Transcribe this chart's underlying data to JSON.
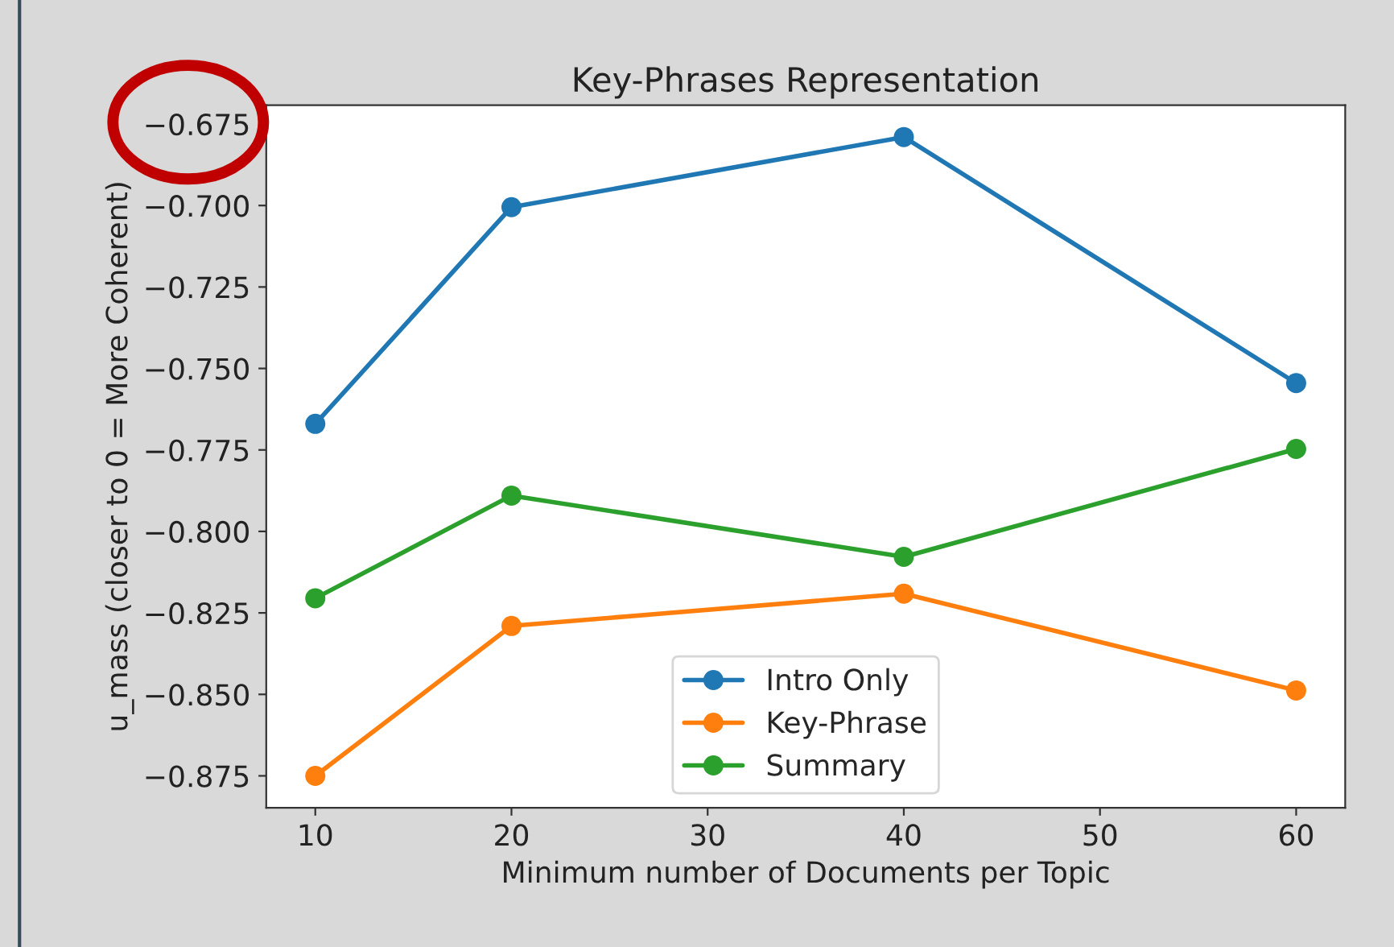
{
  "chart_data": {
    "type": "line",
    "title": "Key-Phrases Representation",
    "xlabel": "Minimum number of Documents per Topic",
    "ylabel": "u_mass (closer to 0 = More Coherent)",
    "x": [
      10,
      20,
      40,
      60
    ],
    "series": [
      {
        "name": "Intro Only",
        "color": "#1f77b4",
        "values": [
          -0.767,
          -0.7005,
          -0.679,
          -0.7545
        ]
      },
      {
        "name": "Key-Phrase",
        "color": "#ff7f0e",
        "values": [
          -0.875,
          -0.829,
          -0.8191,
          -0.8488
        ]
      },
      {
        "name": "Summary",
        "color": "#2ca02c",
        "values": [
          -0.8205,
          -0.789,
          -0.8078,
          -0.7747
        ]
      }
    ],
    "xlim": [
      7.5,
      62.5
    ],
    "xticks": [
      10,
      20,
      30,
      40,
      50,
      60
    ],
    "ylim": [
      -0.8848,
      -0.6692
    ],
    "yticks": [
      {
        "value": -0.875,
        "label": "−0.875"
      },
      {
        "value": -0.85,
        "label": "−0.850"
      },
      {
        "value": -0.825,
        "label": "−0.825"
      },
      {
        "value": -0.8,
        "label": "−0.800"
      },
      {
        "value": -0.775,
        "label": "−0.775"
      },
      {
        "value": -0.75,
        "label": "−0.750"
      },
      {
        "value": -0.725,
        "label": "−0.725"
      },
      {
        "value": -0.7,
        "label": "−0.700"
      },
      {
        "value": -0.675,
        "label": "−0.675"
      }
    ],
    "grid": false,
    "legend": "bottom",
    "marker": "circle",
    "line_style": "solid"
  }
}
